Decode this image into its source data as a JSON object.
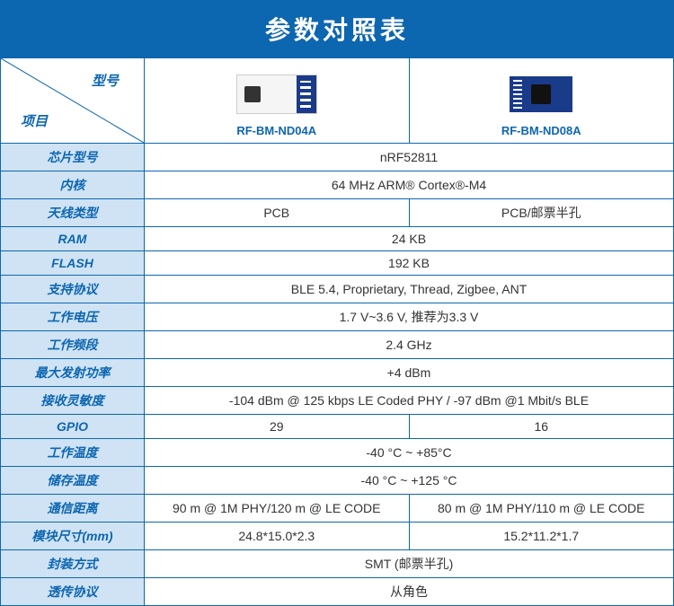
{
  "title": "参数对照表",
  "diag": {
    "top": "型号",
    "bottom": "项目"
  },
  "products": [
    {
      "name": "RF-BM-ND04A"
    },
    {
      "name": "RF-BM-ND08A"
    }
  ],
  "rows": [
    {
      "label": "芯片型号",
      "span": true,
      "value": "nRF52811"
    },
    {
      "label": "内核",
      "span": true,
      "value": "64 MHz ARM® Cortex®-M4"
    },
    {
      "label": "天线类型",
      "span": false,
      "a": "PCB",
      "b": "PCB/邮票半孔"
    },
    {
      "label": "RAM",
      "span": true,
      "value": "24 KB"
    },
    {
      "label": "FLASH",
      "span": true,
      "value": "192 KB"
    },
    {
      "label": "支持协议",
      "span": true,
      "value": "BLE 5.4, Proprietary, Thread, Zigbee, ANT"
    },
    {
      "label": "工作电压",
      "span": true,
      "value": "1.7 V~3.6 V, 推荐为3.3 V"
    },
    {
      "label": "工作频段",
      "span": true,
      "value": "2.4 GHz"
    },
    {
      "label": "最大发射功率",
      "span": true,
      "value": "+4 dBm"
    },
    {
      "label": "接收灵敏度",
      "span": true,
      "value": "-104 dBm @ 125 kbps LE Coded PHY / -97 dBm @1 Mbit/s BLE"
    },
    {
      "label": "GPIO",
      "span": false,
      "a": "29",
      "b": "16"
    },
    {
      "label": "工作温度",
      "span": true,
      "value": "-40 °C ~ +85°C"
    },
    {
      "label": "储存温度",
      "span": true,
      "value": "-40 °C ~ +125 °C"
    },
    {
      "label": "通信距离",
      "span": false,
      "a": "90 m @ 1M PHY/120 m @ LE CODE",
      "b": "80 m @ 1M PHY/110 m @ LE CODE"
    },
    {
      "label": "模块尺寸(mm)",
      "span": false,
      "a": "24.8*15.0*2.3",
      "b": "15.2*11.2*1.7"
    },
    {
      "label": "封装方式",
      "span": true,
      "value": "SMT (邮票半孔)"
    },
    {
      "label": "透传协议",
      "span": true,
      "value": "从角色"
    }
  ],
  "colors": {
    "brand": "#0d66b0",
    "label_bg": "#cfe3f5"
  }
}
